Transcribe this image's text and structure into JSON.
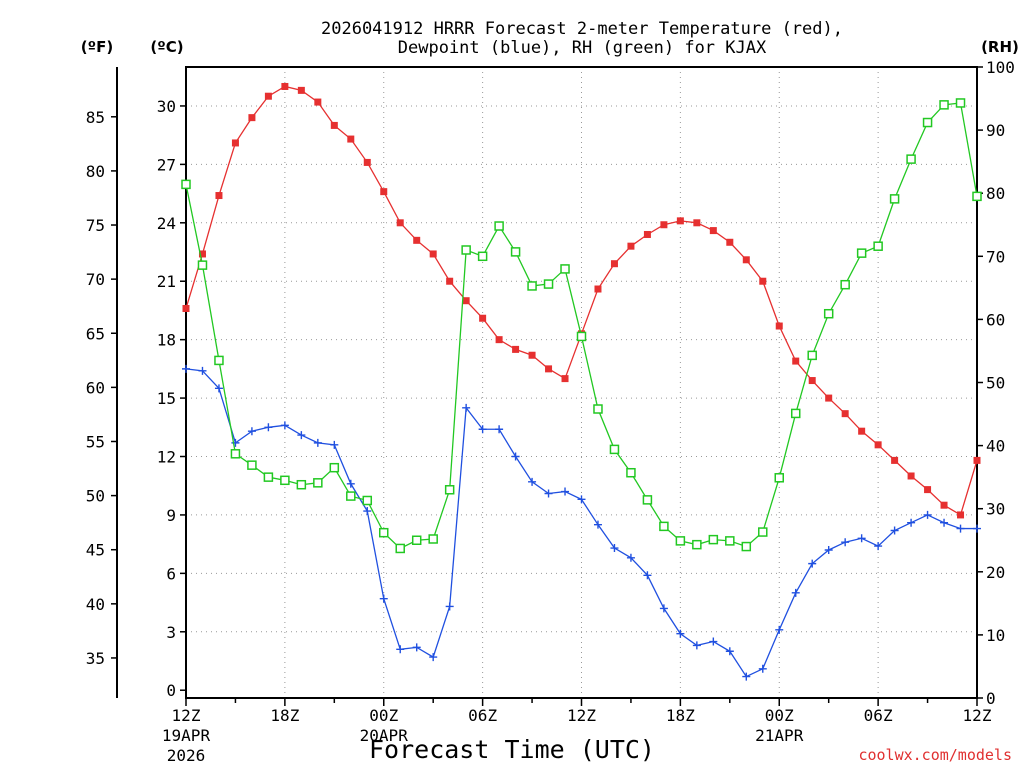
{
  "chart_data": {
    "type": "line",
    "title_line1": "2026041912 HRRR Forecast 2-meter Temperature (red),",
    "title_line2": "Dewpoint (blue), RH (green) for KJAX",
    "left_unit_f": "(ºF)",
    "left_unit_c": "(ºC)",
    "right_unit": "(RH)",
    "xlabel": "Forecast Time (UTC)",
    "credit": "coolwx.com/models",
    "x_hours": [
      0,
      1,
      2,
      3,
      4,
      5,
      6,
      7,
      8,
      9,
      10,
      11,
      12,
      13,
      14,
      15,
      16,
      17,
      18,
      19,
      20,
      21,
      22,
      23,
      24,
      25,
      26,
      27,
      28,
      29,
      30,
      31,
      32,
      33,
      34,
      35,
      36,
      37,
      38,
      39,
      40,
      41,
      42,
      43,
      44,
      45,
      46,
      47,
      48
    ],
    "x_tick_hours": [
      0,
      6,
      12,
      18,
      24,
      30,
      36,
      42,
      48
    ],
    "x_tick_labels": [
      "12Z",
      "18Z",
      "00Z",
      "06Z",
      "12Z",
      "18Z",
      "00Z",
      "06Z",
      "12Z"
    ],
    "date_labels": [
      {
        "hour": 0,
        "line1": "19APR",
        "line2": "2026"
      },
      {
        "hour": 12,
        "line1": "20APR",
        "line2": ""
      },
      {
        "hour": 36,
        "line1": "21APR",
        "line2": ""
      }
    ],
    "ylim_c": [
      -0.4,
      32
    ],
    "ylim_f": [
      31.3,
      89.6
    ],
    "ylim_rh": [
      0,
      100
    ],
    "y_ticks_c": [
      0,
      3,
      6,
      9,
      12,
      15,
      18,
      21,
      24,
      27,
      30
    ],
    "y_ticks_f": [
      35,
      40,
      45,
      50,
      55,
      60,
      65,
      70,
      75,
      80,
      85
    ],
    "y_ticks_rh": [
      0,
      10,
      20,
      30,
      40,
      50,
      60,
      70,
      80,
      90,
      100
    ],
    "grid": true,
    "series": [
      {
        "name": "Temperature",
        "color": "#e63030",
        "marker": "square-filled",
        "values": [
          19.6,
          22.4,
          25.4,
          28.1,
          29.4,
          30.5,
          31.0,
          30.8,
          30.2,
          29.0,
          28.3,
          27.1,
          25.6,
          24.0,
          23.1,
          22.4,
          21.0,
          20.0,
          19.1,
          18.0,
          17.5,
          17.2,
          16.5,
          16.0,
          18.3,
          20.6,
          21.9,
          22.8,
          23.4,
          23.9,
          24.1,
          24.0,
          23.6,
          23.0,
          22.1,
          21.0,
          18.7,
          16.9,
          15.9,
          15.0,
          14.2,
          13.3,
          12.6,
          11.8,
          11.0,
          10.3,
          9.5,
          9.0,
          11.8
        ]
      },
      {
        "name": "Dewpoint",
        "color": "#2050e0",
        "marker": "plus",
        "values": [
          16.5,
          16.4,
          15.5,
          12.7,
          13.3,
          13.5,
          13.6,
          13.1,
          12.7,
          12.6,
          10.6,
          9.2,
          4.7,
          2.1,
          2.2,
          1.7,
          4.3,
          14.5,
          13.4,
          13.4,
          12.0,
          10.7,
          10.1,
          10.2,
          9.8,
          8.5,
          7.3,
          6.8,
          5.9,
          4.2,
          2.9,
          2.3,
          2.5,
          2.0,
          0.7,
          1.1,
          3.1,
          5.0,
          6.5,
          7.2,
          7.6,
          7.8,
          7.4,
          8.2,
          8.6,
          9.0,
          8.6,
          8.3,
          8.3
        ]
      },
      {
        "name": "RH",
        "color": "#22c822",
        "marker": "square-open",
        "values": [
          81.4,
          68.6,
          53.5,
          38.7,
          36.9,
          35.0,
          34.5,
          33.8,
          34.1,
          36.5,
          32.0,
          31.3,
          26.2,
          23.7,
          25.0,
          25.2,
          33.0,
          71.0,
          70.0,
          74.8,
          70.7,
          65.3,
          65.6,
          68.0,
          57.3,
          45.8,
          39.4,
          35.7,
          31.4,
          27.2,
          24.9,
          24.3,
          25.1,
          24.9,
          24.0,
          26.3,
          34.9,
          45.1,
          54.3,
          60.9,
          65.5,
          70.5,
          71.6,
          79.1,
          85.4,
          91.2,
          94.0,
          94.3,
          79.5
        ]
      }
    ]
  }
}
